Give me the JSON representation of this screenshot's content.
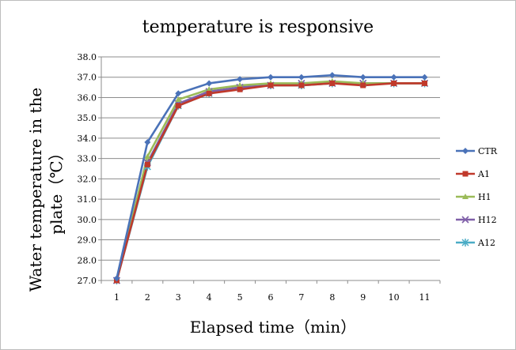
{
  "chart_data": {
    "type": "line",
    "title": "temperature is responsive",
    "xlabel": "Elapsed time（min）",
    "ylabel_line1": "Water temperature in the",
    "ylabel_line2": "plate（℃）",
    "x": [
      1,
      2,
      3,
      4,
      5,
      6,
      7,
      8,
      9,
      10,
      11
    ],
    "x_tick_labels": [
      "1",
      "2",
      "3",
      "4",
      "5",
      "6",
      "7",
      "8",
      "9",
      "10",
      "11"
    ],
    "y_tick_labels": [
      "27.0",
      "28.0",
      "29.0",
      "30.0",
      "31.0",
      "32.0",
      "33.0",
      "34.0",
      "35.0",
      "36.0",
      "37.0",
      "38.0"
    ],
    "ylim": [
      27,
      38
    ],
    "grid": "horizontal",
    "legend_position": "right",
    "series": [
      {
        "name": "CTR",
        "color": "#4a72b8",
        "marker": "diamond",
        "values": [
          27.1,
          33.8,
          36.2,
          36.7,
          36.9,
          37.0,
          37.0,
          37.1,
          37.0,
          37.0,
          37.0
        ]
      },
      {
        "name": "A1",
        "color": "#c0392b",
        "marker": "square",
        "values": [
          27.0,
          32.7,
          35.6,
          36.2,
          36.4,
          36.6,
          36.6,
          36.7,
          36.6,
          36.7,
          36.7
        ]
      },
      {
        "name": "H1",
        "color": "#9bbb59",
        "marker": "triangle",
        "values": [
          27.0,
          33.1,
          35.9,
          36.4,
          36.6,
          36.7,
          36.7,
          36.8,
          36.7,
          36.7,
          36.7
        ]
      },
      {
        "name": "H12",
        "color": "#7f5fa8",
        "marker": "x",
        "values": [
          27.0,
          32.8,
          35.7,
          36.3,
          36.5,
          36.6,
          36.7,
          36.7,
          36.7,
          36.7,
          36.7
        ]
      },
      {
        "name": "A12",
        "color": "#4bacc6",
        "marker": "star",
        "values": [
          27.0,
          32.6,
          35.6,
          36.2,
          36.5,
          36.6,
          36.6,
          36.7,
          36.7,
          36.7,
          36.7
        ]
      }
    ]
  }
}
